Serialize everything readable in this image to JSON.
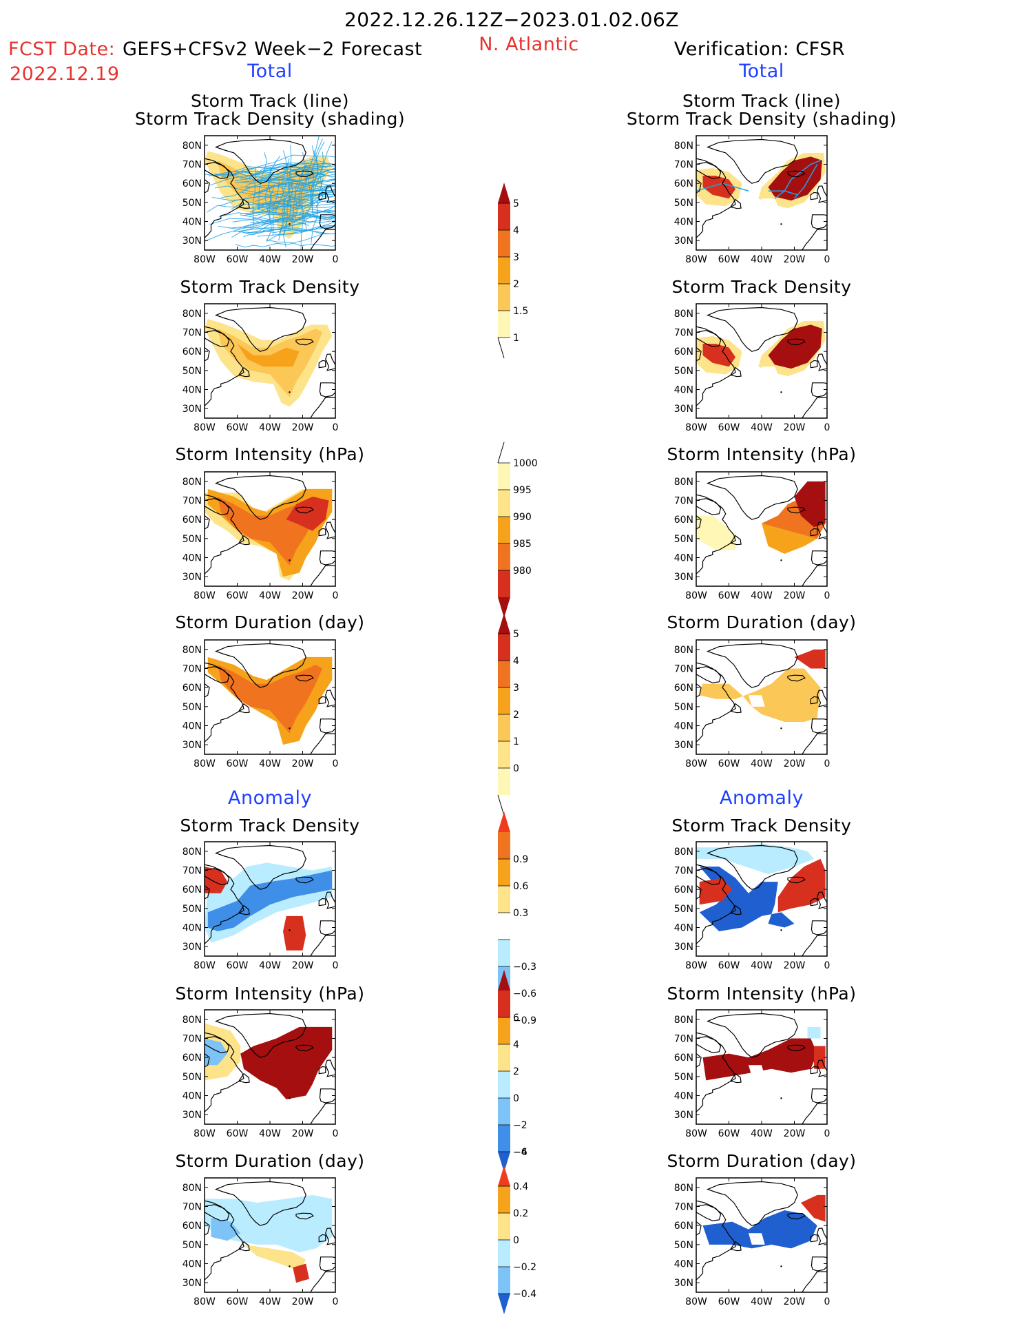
{
  "header": {
    "period": "2022.12.26.12Z−2023.01.02.06Z",
    "fcst_label": "FCST Date:",
    "fcst_model": "GEFS+CFSv2 Week−2 Forecast",
    "fcst_date": "2022.12.19",
    "region": "N. Atlantic",
    "verification": "Verification: CFSR",
    "total_left": "Total",
    "total_right": "Total",
    "anomaly_left": "Anomaly",
    "anomaly_right": "Anomaly"
  },
  "axes": {
    "lat_labels": [
      "80N",
      "70N",
      "60N",
      "50N",
      "40N",
      "30N"
    ],
    "lon_labels": [
      "80W",
      "60W",
      "40W",
      "20W",
      "0"
    ]
  },
  "panels": {
    "row1_title_a": "Storm Track (line)",
    "row1_title_b": "Storm Track Density (shading)",
    "track_density": "Storm Track Density",
    "intensity": "Storm Intensity (hPa)",
    "duration": "Storm Duration (day)"
  },
  "colorbars": {
    "density_total": [
      "5",
      "4",
      "3",
      "2",
      "1.5",
      "1"
    ],
    "intensity_total": [
      "1000",
      "995",
      "990",
      "985",
      "980"
    ],
    "duration_total": [
      "5",
      "4",
      "3",
      "2",
      "1",
      "0"
    ],
    "density_anom": [
      "0.9",
      "0.6",
      "0.3",
      "−0.3",
      "−0.6",
      "−0.9"
    ],
    "intensity_anom": [
      "6",
      "4",
      "2",
      "0",
      "−2",
      "−4",
      "−6"
    ],
    "duration_anom": [
      "0.4",
      "0.2",
      "0",
      "−0.2",
      "−0.4"
    ]
  },
  "colors": {
    "yellow_light": "#fff7b5",
    "yellow": "#fde38a",
    "gold": "#fbc756",
    "orange": "#f7a21b",
    "orange_dark": "#f0731f",
    "red": "#d7301f",
    "dark_red": "#a50f0f",
    "blue_light": "#b9ecff",
    "blue_mid": "#7ec3f7",
    "blue": "#3f8fe8",
    "blue_dark": "#1f5fd0",
    "track_line": "#1fa2e8"
  }
}
